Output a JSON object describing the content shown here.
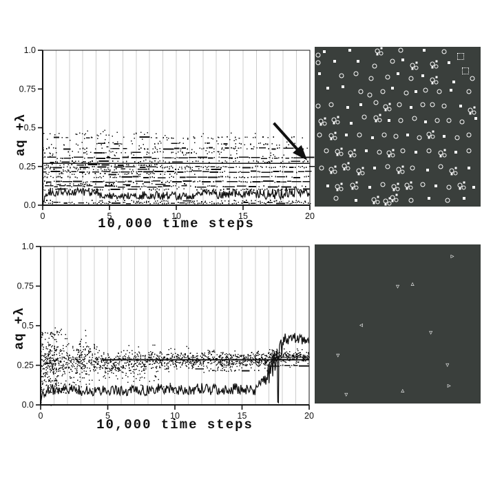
{
  "figure": {
    "background": "#ffffff",
    "ink_color": "#111111",
    "grid_line_color": "#cccccc",
    "snapshot_background": "#3a3f3c",
    "organism_color": "#ffffff"
  },
  "chart_data": [
    {
      "type": "scatter-line",
      "panel": "top-left",
      "title": "",
      "xlabel": "10,000 time steps",
      "ylabel": "aq +λ",
      "xlim": [
        0,
        20
      ],
      "ylim": [
        0,
        1
      ],
      "xticks": [
        {
          "v": 0,
          "label": "0"
        },
        {
          "v": 5,
          "label": "5"
        },
        {
          "v": 10,
          "label": "10"
        },
        {
          "v": 15,
          "label": "15"
        },
        {
          "v": 20,
          "label": "20"
        }
      ],
      "yticks": [
        {
          "v": 1,
          "label": "1.0"
        },
        {
          "v": 0.75,
          "label": "0.75"
        },
        {
          "v": 0.5,
          "label": "0.5"
        },
        {
          "v": 0.25,
          "label": "0.25"
        },
        {
          "v": 0,
          "label": "0.0"
        }
      ],
      "grid": {
        "on": true,
        "vertical_step": 1
      },
      "seed": 42,
      "hlines": [
        [
          0.27,
          0,
          20,
          1.6
        ]
      ],
      "bands": [
        [
          0.018,
          0,
          20,
          0.8,
          0.05
        ],
        [
          0.03,
          0,
          20,
          0.35,
          0.02
        ],
        [
          0.105,
          0,
          20,
          0.5,
          0.12
        ],
        [
          0.125,
          0,
          9.5,
          0.97,
          0.5
        ],
        [
          0.125,
          9.5,
          20,
          0.55,
          0.25
        ],
        [
          0.14,
          0,
          12,
          0.3,
          0.05
        ],
        [
          0.155,
          0,
          20,
          0.75,
          0.3
        ],
        [
          0.185,
          0,
          20,
          0.6,
          0.18
        ],
        [
          0.205,
          0,
          12,
          0.35,
          0.08
        ],
        [
          0.22,
          0,
          20,
          0.8,
          0.4
        ],
        [
          0.235,
          0,
          13,
          0.4,
          0.1
        ],
        [
          0.25,
          0,
          20,
          0.7,
          0.18
        ],
        [
          0.263,
          0,
          9,
          0.55,
          0.12
        ],
        [
          0.285,
          0,
          20,
          0.45,
          0.08
        ],
        [
          0.31,
          0,
          20,
          0.75,
          0.45
        ],
        [
          0.345,
          0,
          14,
          0.28,
          0.06
        ],
        [
          0.37,
          0,
          6,
          0.3,
          0.08
        ],
        [
          0.37,
          6,
          19.5,
          0.55,
          0.35
        ],
        [
          0.4,
          4,
          17,
          0.33,
          0.2
        ],
        [
          0.44,
          0,
          19,
          0.22,
          0.08
        ]
      ],
      "clouds": [
        [
          0.2,
          20,
          0.41,
          0.03,
          80
        ],
        [
          0,
          20,
          0.335,
          0.022,
          60
        ],
        [
          0,
          9,
          0.465,
          0.012,
          18
        ]
      ],
      "noise_line": {
        "step": 0.055,
        "segments": [
          [
            0,
            0.15,
            0.02,
            0.02,
            0.004
          ],
          [
            0.15,
            0.3,
            0.05,
            0.075,
            0.01
          ],
          [
            0.3,
            4.3,
            0.085,
            0.085,
            0.027
          ],
          [
            4.3,
            7,
            0.06,
            0.06,
            0.022
          ],
          [
            7,
            12,
            0.062,
            0.062,
            0.028
          ],
          [
            12,
            16,
            0.07,
            0.07,
            0.03
          ],
          [
            16,
            18,
            0.072,
            0.072,
            0.035
          ],
          [
            18,
            19.3,
            0.08,
            0.08,
            0.04
          ],
          [
            19.3,
            20,
            0.07,
            0.07,
            0.03
          ]
        ]
      },
      "arrow": {
        "from": [
          17.3,
          0.53
        ],
        "to": [
          19.8,
          0.29
        ]
      }
    },
    {
      "type": "scatter-line",
      "panel": "bottom-left",
      "title": "",
      "xlabel": "10,000 time steps",
      "ylabel": "aq +λ",
      "xlim": [
        0,
        20
      ],
      "ylim": [
        0,
        1
      ],
      "xticks": [
        {
          "v": 0,
          "label": "0"
        },
        {
          "v": 5,
          "label": "5"
        },
        {
          "v": 10,
          "label": "10"
        },
        {
          "v": 15,
          "label": "15"
        },
        {
          "v": 20,
          "label": "20"
        }
      ],
      "yticks": [
        {
          "v": 1,
          "label": "1.0"
        },
        {
          "v": 0.75,
          "label": "0.75"
        },
        {
          "v": 0.5,
          "label": "0.5"
        },
        {
          "v": 0.25,
          "label": "0.25"
        },
        {
          "v": 0,
          "label": "0.0"
        }
      ],
      "grid": {
        "on": true,
        "vertical_step": 1
      },
      "seed": 7,
      "hlines": [
        [
          0.285,
          4.5,
          20,
          1.8
        ],
        [
          0.3,
          17.3,
          20,
          1.4
        ]
      ],
      "bands": [
        [
          0.25,
          17,
          20,
          0.85,
          0.25
        ],
        [
          0.22,
          12.5,
          17,
          0.7,
          0.15
        ],
        [
          0.235,
          8,
          12.5,
          0.35,
          0.08
        ],
        [
          0.02,
          0,
          0.4,
          0.5,
          0.05
        ]
      ],
      "clouds": [
        [
          0,
          1.2,
          0.27,
          0.085,
          230
        ],
        [
          1.2,
          4,
          0.28,
          0.055,
          260
        ],
        [
          4,
          8,
          0.27,
          0.035,
          300
        ],
        [
          8,
          13,
          0.29,
          0.027,
          340
        ],
        [
          13,
          17,
          0.285,
          0.024,
          300
        ],
        [
          17,
          20,
          0.305,
          0.02,
          240
        ],
        [
          0,
          3,
          0.13,
          0.03,
          50
        ],
        [
          3,
          10,
          0.16,
          0.035,
          40
        ],
        [
          0,
          2,
          0.45,
          0.015,
          25
        ]
      ],
      "noise_line": {
        "step": 0.055,
        "segments": [
          [
            0,
            0.1,
            0.005,
            0.06,
            0.01
          ],
          [
            0.1,
            0.5,
            0.07,
            0.07,
            0.02
          ],
          [
            0.5,
            3,
            0.095,
            0.095,
            0.032
          ],
          [
            3,
            8,
            0.09,
            0.09,
            0.033
          ],
          [
            8,
            12,
            0.1,
            0.1,
            0.036
          ],
          [
            12,
            16,
            0.1,
            0.1,
            0.038
          ],
          [
            16,
            16.9,
            0.12,
            0.16,
            0.04
          ],
          [
            16.9,
            17.4,
            0.18,
            0.26,
            0.07
          ],
          [
            17.4,
            17.66,
            0.27,
            0.3,
            0.08
          ],
          [
            17.66,
            17.74,
            0.03,
            0.03,
            0.02
          ],
          [
            17.74,
            18.1,
            0.32,
            0.4,
            0.07
          ],
          [
            18.1,
            20,
            0.42,
            0.42,
            0.038
          ]
        ]
      },
      "arrow": null
    }
  ],
  "grids": [
    {
      "panel": "top-right",
      "background": "#3a3f3c",
      "glyph_color": "#ffffff",
      "glyphs": [
        [
          2,
          5,
          "r"
        ],
        [
          6,
          3,
          "s"
        ],
        [
          21,
          2,
          "s"
        ],
        [
          39,
          3,
          "b"
        ],
        [
          52,
          2,
          "r"
        ],
        [
          66,
          2,
          "s"
        ],
        [
          78,
          3,
          "r"
        ],
        [
          88,
          6,
          "q"
        ],
        [
          2,
          10,
          "r"
        ],
        [
          12,
          9,
          "s"
        ],
        [
          26,
          9,
          "s"
        ],
        [
          36,
          12,
          "r"
        ],
        [
          47,
          9,
          "r"
        ],
        [
          53,
          8,
          "s"
        ],
        [
          60,
          12,
          "b"
        ],
        [
          72,
          11,
          "b"
        ],
        [
          81,
          10,
          "s"
        ],
        [
          91,
          15,
          "q"
        ],
        [
          3,
          17,
          "s"
        ],
        [
          16,
          18,
          "r"
        ],
        [
          25,
          17,
          "r"
        ],
        [
          34,
          20,
          "r"
        ],
        [
          44,
          19,
          "r"
        ],
        [
          50,
          17,
          "s"
        ],
        [
          58,
          20,
          "r"
        ],
        [
          65,
          18,
          "s"
        ],
        [
          72,
          21,
          "b"
        ],
        [
          84,
          22,
          "s"
        ],
        [
          95,
          20,
          "r"
        ],
        [
          8,
          26,
          "s"
        ],
        [
          17,
          25,
          "s"
        ],
        [
          28,
          28,
          "r"
        ],
        [
          33,
          30,
          "r"
        ],
        [
          41,
          28,
          "r"
        ],
        [
          47,
          26,
          "s"
        ],
        [
          55,
          29,
          "r"
        ],
        [
          61,
          28,
          "s"
        ],
        [
          67,
          27,
          "r"
        ],
        [
          75,
          28,
          "r"
        ],
        [
          82,
          27,
          "s"
        ],
        [
          93,
          28,
          "r"
        ],
        [
          2,
          37,
          "r"
        ],
        [
          10,
          36,
          "r"
        ],
        [
          20,
          38,
          "s"
        ],
        [
          28,
          36,
          "s"
        ],
        [
          37,
          35,
          "r"
        ],
        [
          44,
          38,
          "b"
        ],
        [
          51,
          36,
          "r"
        ],
        [
          58,
          38,
          "s"
        ],
        [
          65,
          36,
          "r"
        ],
        [
          71,
          36,
          "r"
        ],
        [
          78,
          37,
          "r"
        ],
        [
          88,
          37,
          "s"
        ],
        [
          95,
          40,
          "b"
        ],
        [
          5,
          47,
          "b"
        ],
        [
          13,
          46,
          "b"
        ],
        [
          22,
          48,
          "s"
        ],
        [
          30,
          44,
          "r"
        ],
        [
          38,
          45,
          "b"
        ],
        [
          45,
          46,
          "s"
        ],
        [
          52,
          46,
          "r"
        ],
        [
          60,
          45,
          "r"
        ],
        [
          67,
          47,
          "s"
        ],
        [
          74,
          46,
          "r"
        ],
        [
          81,
          46,
          "r"
        ],
        [
          89,
          47,
          "r"
        ],
        [
          97,
          45,
          "s"
        ],
        [
          3,
          55,
          "r"
        ],
        [
          11,
          56,
          "b"
        ],
        [
          19,
          55,
          "s"
        ],
        [
          27,
          55,
          "r"
        ],
        [
          35,
          57,
          "s"
        ],
        [
          42,
          55,
          "r"
        ],
        [
          49,
          56,
          "r"
        ],
        [
          56,
          55,
          "s"
        ],
        [
          63,
          57,
          "r"
        ],
        [
          70,
          55,
          "b"
        ],
        [
          78,
          56,
          "s"
        ],
        [
          86,
          57,
          "r"
        ],
        [
          93,
          55,
          "r"
        ],
        [
          7,
          65,
          "r"
        ],
        [
          15,
          66,
          "b"
        ],
        [
          23,
          67,
          "b"
        ],
        [
          31,
          65,
          "s"
        ],
        [
          39,
          66,
          "r"
        ],
        [
          46,
          67,
          "b"
        ],
        [
          53,
          65,
          "r"
        ],
        [
          61,
          66,
          "s"
        ],
        [
          69,
          65,
          "r"
        ],
        [
          77,
          67,
          "b"
        ],
        [
          85,
          66,
          "s"
        ],
        [
          93,
          65,
          "r"
        ],
        [
          4,
          76,
          "r"
        ],
        [
          11,
          77,
          "b"
        ],
        [
          19,
          75,
          "b"
        ],
        [
          28,
          78,
          "b"
        ],
        [
          36,
          76,
          "s"
        ],
        [
          44,
          75,
          "r"
        ],
        [
          52,
          77,
          "b"
        ],
        [
          59,
          76,
          "r"
        ],
        [
          68,
          77,
          "s"
        ],
        [
          76,
          75,
          "r"
        ],
        [
          84,
          78,
          "b"
        ],
        [
          93,
          76,
          "s"
        ],
        [
          8,
          87,
          "s"
        ],
        [
          15,
          88,
          "b"
        ],
        [
          24,
          87,
          "b"
        ],
        [
          33,
          88,
          "s"
        ],
        [
          41,
          86,
          "r"
        ],
        [
          49,
          88,
          "b"
        ],
        [
          57,
          87,
          "b"
        ],
        [
          65,
          86,
          "r"
        ],
        [
          73,
          87,
          "s"
        ],
        [
          81,
          88,
          "r"
        ],
        [
          89,
          87,
          "b"
        ],
        [
          96,
          88,
          "s"
        ],
        [
          13,
          95,
          "r"
        ],
        [
          25,
          96,
          "s"
        ],
        [
          37,
          96,
          "b"
        ],
        [
          44,
          97,
          "b"
        ],
        [
          48,
          95,
          "b"
        ],
        [
          58,
          96,
          "r"
        ],
        [
          69,
          95,
          "s"
        ],
        [
          80,
          96,
          "r"
        ],
        [
          90,
          95,
          "s"
        ]
      ]
    },
    {
      "panel": "bottom-right",
      "background": "#3a3f3c",
      "glyph_color": "#ffffff",
      "glyphs": [
        [
          83,
          8,
          "tr"
        ],
        [
          50,
          27,
          "td"
        ],
        [
          59,
          25,
          "tu"
        ],
        [
          28,
          51,
          "tl"
        ],
        [
          70,
          56,
          "td"
        ],
        [
          14,
          70,
          "td"
        ],
        [
          80,
          76,
          "td"
        ],
        [
          81,
          89,
          "tr"
        ],
        [
          53,
          92,
          "tu"
        ],
        [
          19,
          95,
          "td"
        ]
      ]
    }
  ],
  "glyph_chars": {
    "tr": "▹",
    "tu": "▵",
    "td": "▿",
    "tl": "◃"
  }
}
